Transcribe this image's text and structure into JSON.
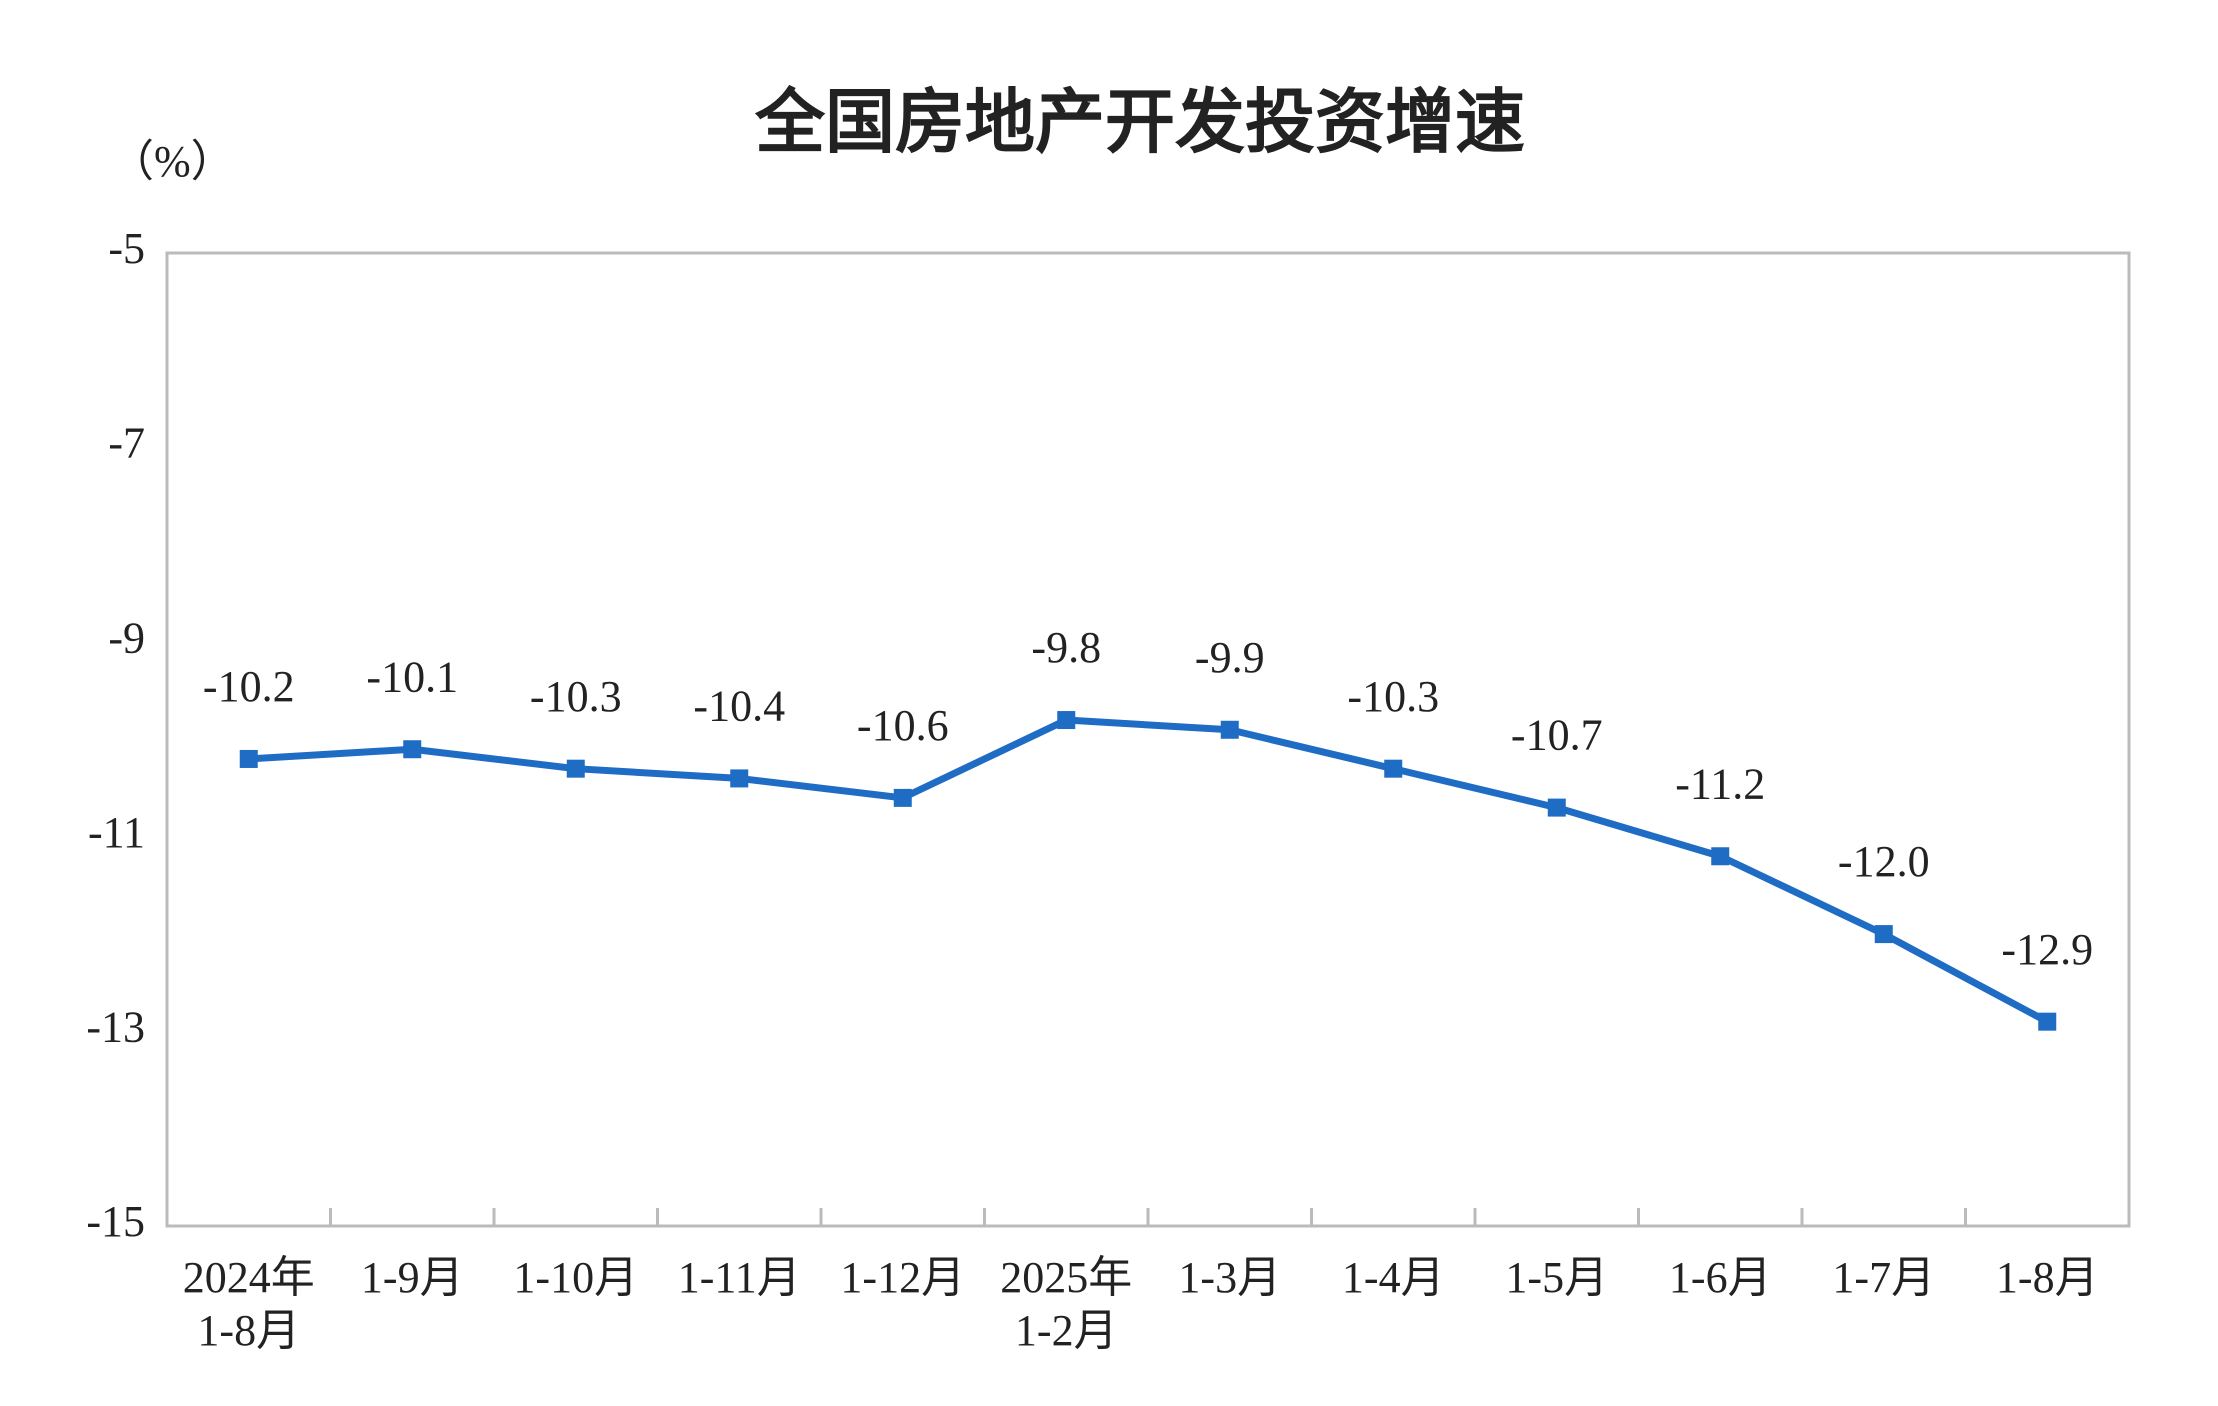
{
  "chart_data": {
    "type": "line",
    "title": "全国房地产开发投资增速",
    "y_axis_label": "（%）",
    "categories": [
      "2024年\n1-8月",
      "1-9月",
      "1-10月",
      "1-11月",
      "1-12月",
      "2025年\n1-2月",
      "1-3月",
      "1-4月",
      "1-5月",
      "1-6月",
      "1-7月",
      "1-8月"
    ],
    "series": [
      {
        "name": "全国房地产开发投资增速",
        "color": "#1f6cc4",
        "values": [
          -10.2,
          -10.1,
          -10.3,
          -10.4,
          -10.6,
          -9.8,
          -9.9,
          -10.3,
          -10.7,
          -11.2,
          -12.0,
          -12.9
        ],
        "value_labels": [
          "-10.2",
          "-10.1",
          "-10.3",
          "-10.4",
          "-10.6",
          "-9.8",
          "-9.9",
          "-10.3",
          "-10.7",
          "-11.2",
          "-12.0",
          "-12.9"
        ]
      }
    ],
    "ylim": [
      -15,
      -5
    ],
    "yticks": [
      -5,
      -7,
      -9,
      -11,
      -13,
      -15
    ],
    "grid": false,
    "legend": false
  }
}
